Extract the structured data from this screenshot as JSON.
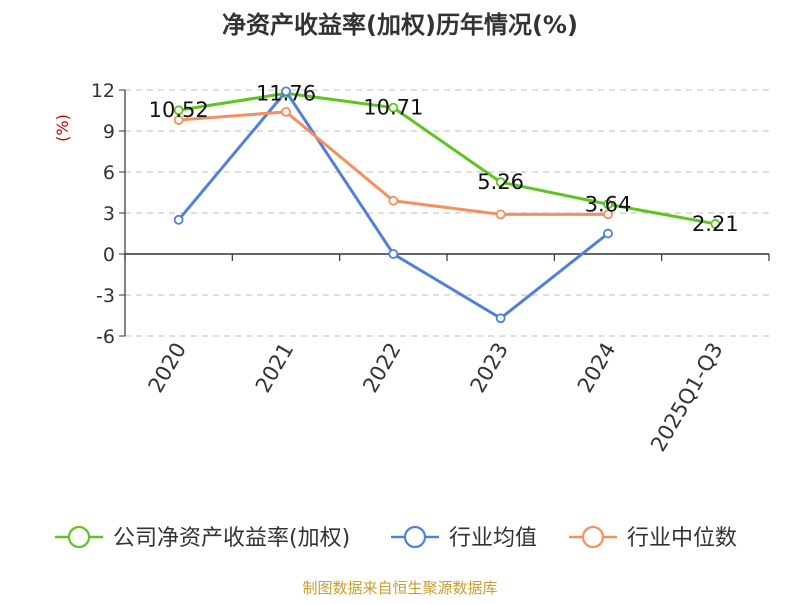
{
  "chart_data": {
    "type": "line",
    "title": "净资产收益率(加权)历年情况(%)",
    "ylabel": "(%)",
    "xlabel": "",
    "categories": [
      "2020",
      "2021",
      "2022",
      "2023",
      "2024",
      "2025Q1-Q3"
    ],
    "ylim": [
      -6,
      12
    ],
    "yticks": [
      -6,
      -3,
      0,
      3,
      6,
      9,
      12
    ],
    "grid": true,
    "legend_position": "bottom",
    "series": [
      {
        "name": "公司净资产收益率(加权)",
        "color": "#5ec422",
        "values": [
          10.52,
          11.76,
          10.71,
          5.26,
          3.64,
          2.21
        ],
        "labels": [
          "10.52",
          "11.76",
          "10.71",
          "5.26",
          "3.64",
          "2.21"
        ]
      },
      {
        "name": "行业均值",
        "color": "#4f80dc",
        "values": [
          2.5,
          11.9,
          0.0,
          -4.7,
          1.5,
          null
        ]
      },
      {
        "name": "行业中位数",
        "color": "#f78f5c",
        "values": [
          9.8,
          10.4,
          3.9,
          2.9,
          2.9,
          null
        ]
      }
    ]
  },
  "footer": {
    "source": "制图数据来自恒生聚源数据库"
  },
  "colors": {
    "title": "#333333",
    "axis_label": "#cc0000",
    "source": "#c8a02a",
    "grid": "#cccccc",
    "axis": "#333333"
  }
}
